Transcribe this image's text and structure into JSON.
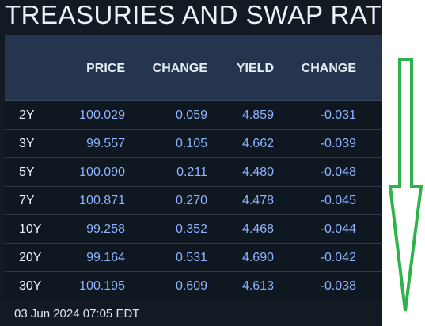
{
  "header": {
    "title": "TREASURIES AND SWAP RAT"
  },
  "table": {
    "columns": [
      "",
      "PRICE",
      "CHANGE",
      "YIELD",
      "CHANGE"
    ],
    "rows": [
      {
        "tenor": "2Y",
        "price": "100.029",
        "change": "0.059",
        "yield": "4.859",
        "ychange": "-0.031"
      },
      {
        "tenor": "3Y",
        "price": "99.557",
        "change": "0.105",
        "yield": "4.662",
        "ychange": "-0.039"
      },
      {
        "tenor": "5Y",
        "price": "100.090",
        "change": "0.211",
        "yield": "4.480",
        "ychange": "-0.048"
      },
      {
        "tenor": "7Y",
        "price": "100.871",
        "change": "0.270",
        "yield": "4.478",
        "ychange": "-0.045"
      },
      {
        "tenor": "10Y",
        "price": "99.258",
        "change": "0.352",
        "yield": "4.468",
        "ychange": "-0.044"
      },
      {
        "tenor": "20Y",
        "price": "99.164",
        "change": "0.531",
        "yield": "4.690",
        "ychange": "-0.042"
      },
      {
        "tenor": "30Y",
        "price": "100.195",
        "change": "0.609",
        "yield": "4.613",
        "ychange": "-0.038"
      }
    ]
  },
  "footer": {
    "timestamp": "03 Jun 2024 07:05 EDT"
  },
  "annotation": {
    "icon": "down-arrow-icon",
    "color": "#2db34a"
  },
  "colors": {
    "panel": "#141a24",
    "header_bg": "#24354d",
    "value": "#8fb3ff"
  }
}
